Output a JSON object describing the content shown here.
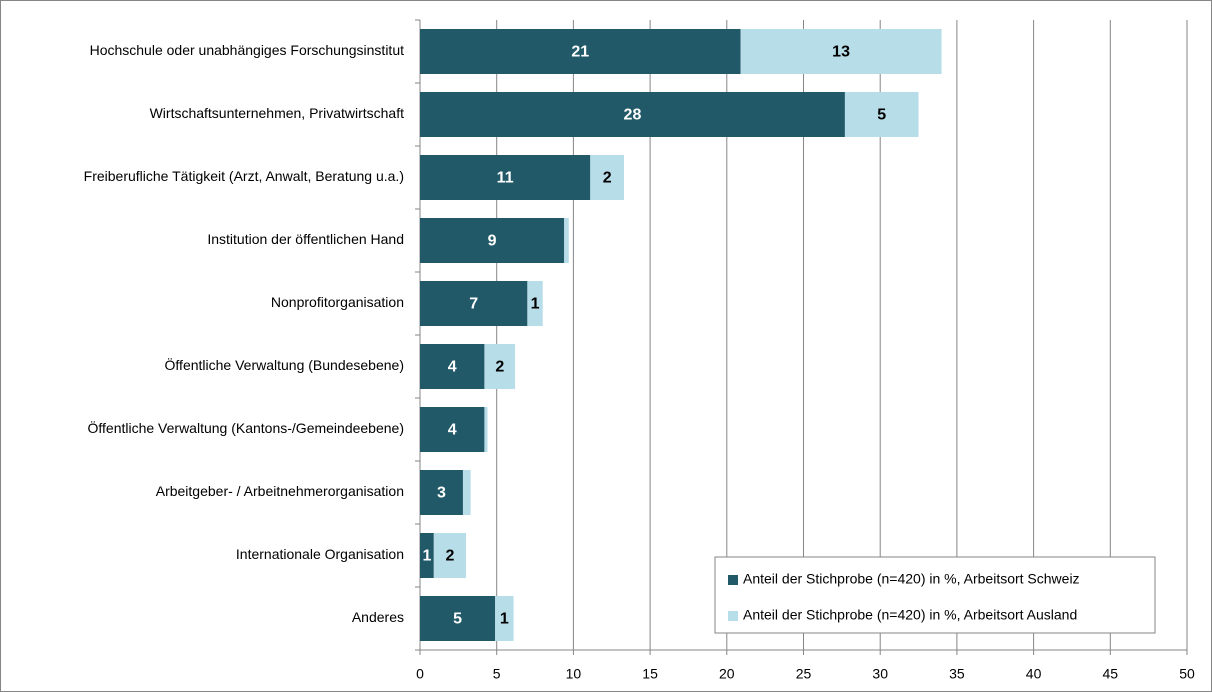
{
  "chart_data": {
    "type": "stacked-barh",
    "categories": [
      "Hochschule oder unabhängiges Forschungsinstitut",
      "Wirtschaftsunternehmen, Privatwirtschaft",
      "Freiberufliche Tätigkeit (Arzt, Anwalt, Beratung u.a.)",
      "Institution der öffentlichen Hand",
      "Nonprofitorganisation",
      "Öffentliche Verwaltung (Bundesebene)",
      "Öffentliche Verwaltung (Kantons-/Gemeindeebene)",
      "Arbeitgeber- / Arbeitnehmerorganisation",
      "Internationale Organisation",
      "Anderes"
    ],
    "series": [
      {
        "name": "Anteil der Stichprobe (n=420) in %, Arbeitsort Schweiz",
        "color": "#215968",
        "values": [
          20.9,
          27.7,
          11.1,
          9.4,
          7.0,
          4.2,
          4.2,
          2.8,
          0.9,
          4.9
        ],
        "value_labels": [
          "21",
          "28",
          "11",
          "9",
          "7",
          "4",
          "4",
          "3",
          "1",
          "5"
        ]
      },
      {
        "name": "Anteil der Stichprobe (n=420) in %, Arbeitsort Ausland",
        "color": "#b7dde8",
        "values": [
          13.1,
          4.8,
          2.2,
          0.3,
          1.0,
          2.0,
          0.2,
          0.5,
          2.1,
          1.2
        ],
        "value_labels": [
          "13",
          "5",
          "2",
          null,
          "1",
          "2",
          null,
          null,
          "2",
          "1"
        ]
      }
    ],
    "xlim": [
      0,
      50
    ],
    "xticks": [
      0,
      5,
      10,
      15,
      20,
      25,
      30,
      35,
      40,
      45,
      50
    ],
    "grid": true,
    "legend": "lower right"
  }
}
